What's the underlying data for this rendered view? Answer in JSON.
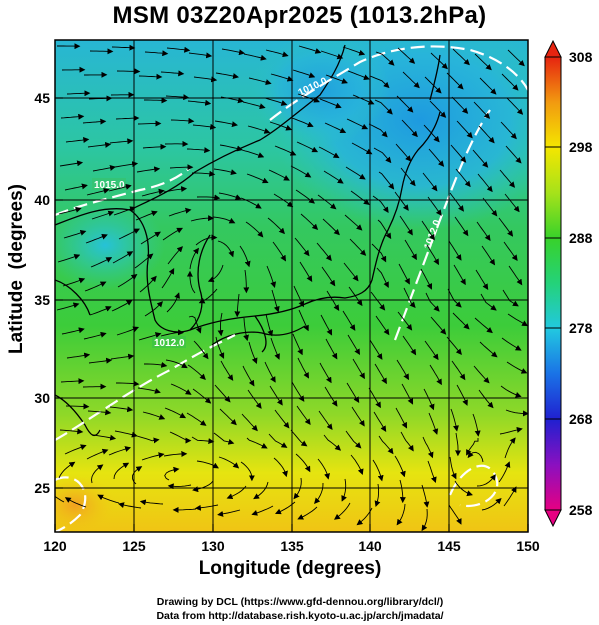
{
  "title": "MSM 03Z20Apr2025 (1013.2hPa)",
  "axes": {
    "xlabel": "Longitude (degrees)",
    "ylabel": "Latitude  (degrees)",
    "x_ticks": [
      "120",
      "125",
      "130",
      "135",
      "140",
      "145",
      "150"
    ],
    "y_ticks": [
      "25",
      "30",
      "35",
      "40",
      "45"
    ],
    "x_range": [
      120,
      150
    ],
    "y_range": [
      22.4,
      47.6
    ]
  },
  "colorbar": {
    "labels": [
      "308",
      "298",
      "288",
      "278",
      "268",
      "258"
    ],
    "range": [
      258,
      308
    ]
  },
  "contour_labels": [
    "1015.0",
    "1012.0",
    "1010.0",
    "1012.0"
  ],
  "credits": {
    "line1": "Drawing by DCL (https://www.gfd-dennou.org/library/dcl/)",
    "line2": "Data from http://database.rish.kyoto-u.ac.jp/arch/jmadata/"
  },
  "colors": {
    "warm": "#f4e600",
    "mid": "#38d22a",
    "cool": "#2aaae0",
    "contour": "#ffffff",
    "coast": "#000000"
  }
}
